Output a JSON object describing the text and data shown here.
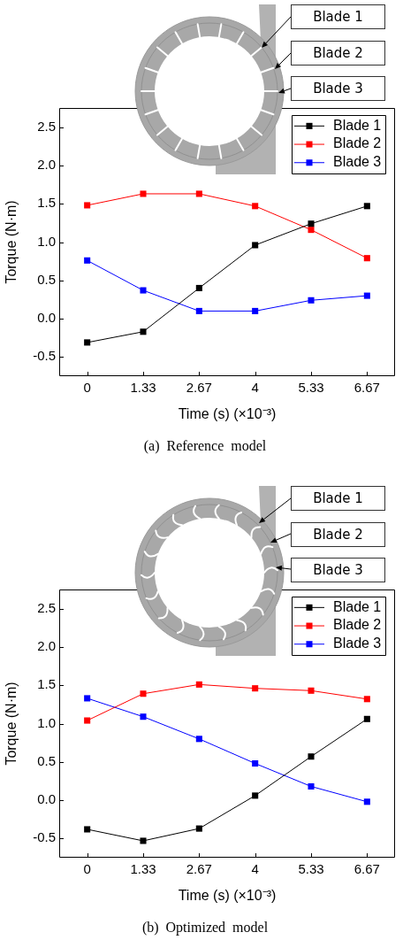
{
  "chart_data": [
    {
      "type": "line",
      "title": "(a) Reference model",
      "xlabel": "Time (s) (×10⁻³)",
      "ylabel": "Torque (N·m)",
      "categories": [
        "0",
        "1.33",
        "2.67",
        "4",
        "5.33",
        "6.67"
      ],
      "series": [
        {
          "name": "Blade 1",
          "color": "#000000",
          "values": [
            -0.31,
            -0.17,
            0.4,
            0.96,
            1.24,
            1.47
          ]
        },
        {
          "name": "Blade 2",
          "color": "#ff0000",
          "values": [
            1.48,
            1.63,
            1.63,
            1.47,
            1.16,
            0.79
          ]
        },
        {
          "name": "Blade 3",
          "color": "#0000ff",
          "values": [
            0.76,
            0.37,
            0.1,
            0.1,
            0.24,
            0.3
          ]
        }
      ],
      "ylim": [
        -0.75,
        2.75
      ],
      "yticks": [
        -0.5,
        {
          "value": 0,
          "label": "0.0"
        },
        0.5,
        {
          "value": 1,
          "label": "1.0"
        },
        1.5,
        {
          "value": 2,
          "label": "2.0"
        },
        2.5
      ],
      "legend": "top right",
      "marker": "square",
      "line_style": "solid",
      "annotations": [
        "Blade 1",
        "Blade 2",
        "Blade 3"
      ]
    },
    {
      "type": "line",
      "title": "(b) Optimized model",
      "xlabel": "Time (s) (×10⁻³)",
      "ylabel": "Torque (N·m)",
      "categories": [
        "0",
        "1.33",
        "2.67",
        "4",
        "5.33",
        "6.67"
      ],
      "series": [
        {
          "name": "Blade 1",
          "color": "#000000",
          "values": [
            -0.38,
            -0.53,
            -0.37,
            0.06,
            0.57,
            1.06
          ]
        },
        {
          "name": "Blade 2",
          "color": "#ff0000",
          "values": [
            1.04,
            1.39,
            1.51,
            1.46,
            1.43,
            1.32
          ]
        },
        {
          "name": "Blade 3",
          "color": "#0000ff",
          "values": [
            1.33,
            1.09,
            0.8,
            0.48,
            0.18,
            -0.02
          ]
        }
      ],
      "ylim": [
        -0.75,
        2.75
      ],
      "yticks": [
        -0.5,
        {
          "value": 0,
          "label": "0.0"
        },
        0.5,
        {
          "value": 1,
          "label": "1.0"
        },
        1.5,
        {
          "value": 2,
          "label": "2.0"
        },
        2.5
      ],
      "legend": "top right",
      "marker": "square",
      "line_style": "solid",
      "annotations": [
        "Blade 1",
        "Blade 2",
        "Blade 3"
      ]
    }
  ]
}
